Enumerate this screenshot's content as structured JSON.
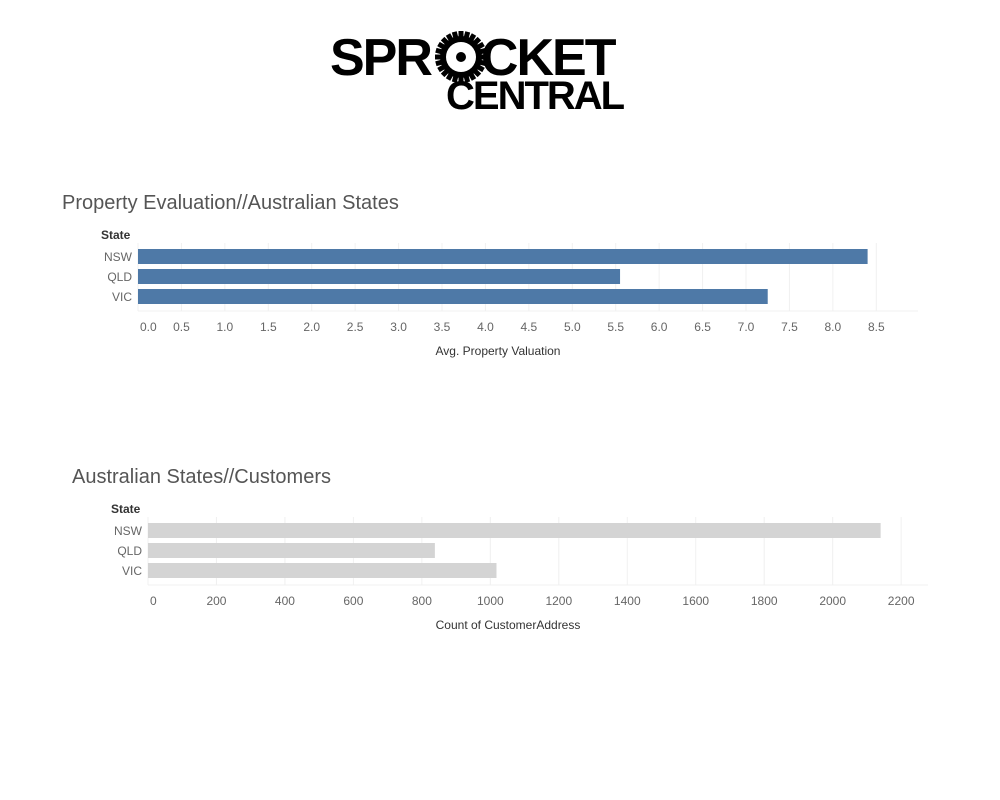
{
  "logo": {
    "line1_left": "SPR",
    "line1_right": "CKET",
    "line2": "CENTRAL"
  },
  "chart_data": [
    {
      "type": "bar",
      "orientation": "horizontal",
      "title": "Property Evaluation//Australian States",
      "dimension_label": "State",
      "categories": [
        "NSW",
        "QLD",
        "VIC"
      ],
      "values": [
        8.4,
        5.55,
        7.25
      ],
      "xlabel": "Avg. Property Valuation",
      "xlim": [
        0,
        8.75
      ],
      "ticks": [
        0.0,
        0.5,
        1.0,
        1.5,
        2.0,
        2.5,
        3.0,
        3.5,
        4.0,
        4.5,
        5.0,
        5.5,
        6.0,
        6.5,
        7.0,
        7.5,
        8.0,
        8.5
      ],
      "tick_decimals": 1,
      "color": "#4e79a7",
      "grid": true
    },
    {
      "type": "bar",
      "orientation": "horizontal",
      "title": "Australian States//Customers",
      "dimension_label": "State",
      "categories": [
        "NSW",
        "QLD",
        "VIC"
      ],
      "values": [
        2140,
        838,
        1018
      ],
      "xlabel": "Count of CustomerAddress",
      "xlim": [
        0,
        2220
      ],
      "ticks": [
        0,
        200,
        400,
        600,
        800,
        1000,
        1200,
        1400,
        1600,
        1800,
        2000,
        2200
      ],
      "tick_decimals": 0,
      "color": "#d4d4d4",
      "grid": true
    }
  ]
}
